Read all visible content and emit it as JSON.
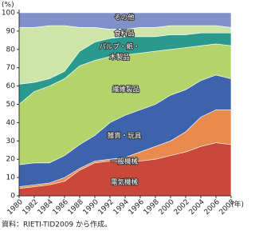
{
  "chart_data": {
    "type": "stacked-area",
    "y_unit": "(%)",
    "x_unit": "(年)",
    "source": "資料：RIETI-TID2009 から作成。",
    "x": [
      1980,
      1982,
      1984,
      1986,
      1988,
      1990,
      1992,
      1994,
      1996,
      1998,
      2000,
      2002,
      2004,
      2006,
      2008
    ],
    "xlim": [
      1980,
      2008
    ],
    "xticks": [
      1980,
      1982,
      1984,
      1986,
      1988,
      1990,
      1992,
      1994,
      1996,
      1998,
      2000,
      2002,
      2004,
      2006,
      2008
    ],
    "ylim": [
      0,
      100
    ],
    "yticks": [
      0,
      10,
      20,
      30,
      40,
      50,
      60,
      70,
      80,
      90,
      100
    ],
    "series": [
      {
        "name": "電気機械",
        "color": "#c9483a",
        "values": [
          4,
          5,
          6,
          8,
          14,
          18,
          19,
          18,
          19,
          20,
          22,
          24,
          27,
          29,
          28
        ]
      },
      {
        "name": "一般機械",
        "color": "#e98a4f",
        "values": [
          1,
          1,
          1,
          2,
          1,
          1,
          1,
          3,
          5,
          7,
          8,
          11,
          16,
          18,
          19
        ]
      },
      {
        "name": "雑貨・玩具",
        "color": "#3c63ab",
        "values": [
          12,
          12,
          11,
          12,
          13,
          14,
          20,
          23,
          23,
          23,
          25,
          23,
          20,
          19,
          17
        ]
      },
      {
        "name": "繊維製品",
        "color": "#b3d46a",
        "values": [
          33,
          39,
          42,
          42,
          43,
          41,
          36,
          33,
          31,
          29,
          25,
          23,
          19,
          17,
          18
        ]
      },
      {
        "name": "パルプ・紙・木製品",
        "color": "#2a9a8e",
        "values": [
          11,
          5,
          4,
          4,
          8,
          10,
          10,
          10,
          9,
          8,
          8,
          7,
          7,
          6,
          7
        ]
      },
      {
        "name": "食料品",
        "color": "#cde6a8",
        "values": [
          31,
          30,
          29,
          25,
          13,
          8,
          5,
          4,
          5,
          5,
          5,
          5,
          4,
          4,
          3
        ]
      },
      {
        "name": "その他",
        "color": "#8090c9",
        "values": [
          8,
          8,
          7,
          7,
          8,
          8,
          9,
          9,
          8,
          8,
          7,
          7,
          7,
          7,
          8
        ]
      }
    ]
  }
}
